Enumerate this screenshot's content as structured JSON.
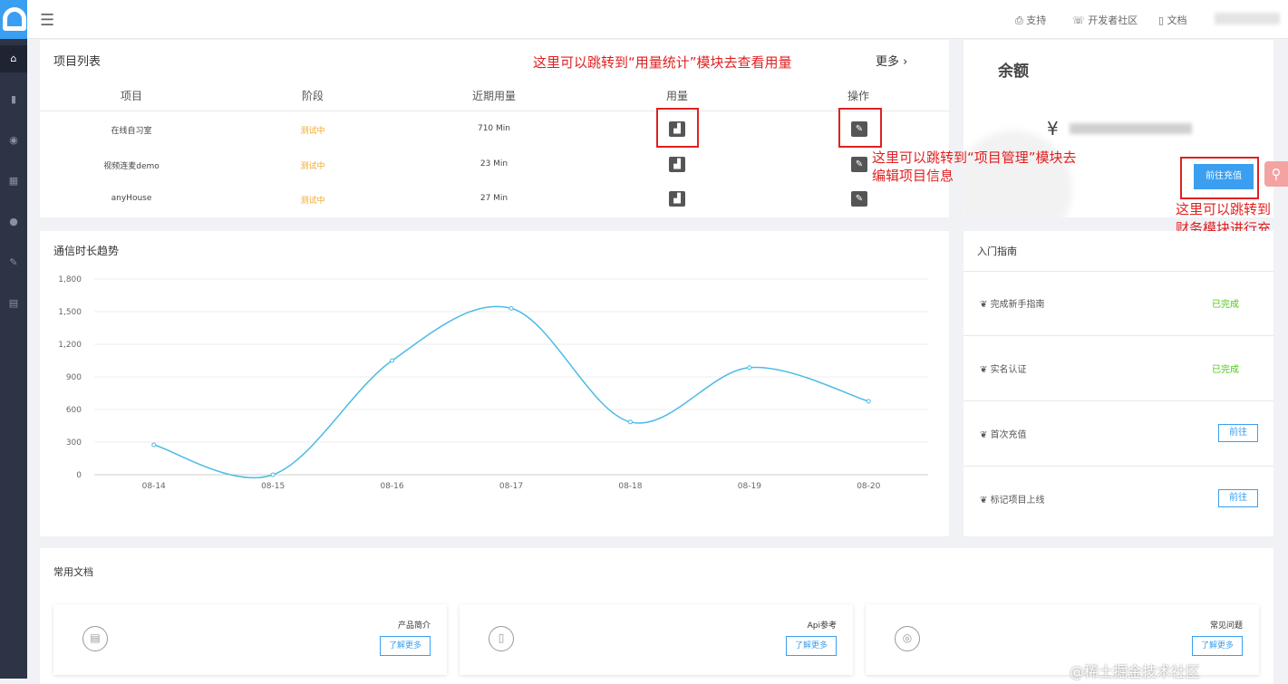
{
  "header": {
    "links": [
      "支持",
      "开发者社区",
      "文档"
    ]
  },
  "projects": {
    "title": "项目列表",
    "more": "更多",
    "columns": [
      "项目",
      "阶段",
      "近期用量",
      "用量",
      "操作"
    ],
    "rows": [
      {
        "name": "在线自习室",
        "stage": "测试中",
        "usage": "710 Min"
      },
      {
        "name": "视频连麦demo",
        "stage": "测试中",
        "usage": "23 Min"
      },
      {
        "name": "anyHouse",
        "stage": "测试中",
        "usage": "27 Min"
      }
    ]
  },
  "balance": {
    "title": "余额",
    "currency": "¥",
    "recharge": "前往充值"
  },
  "annotations": {
    "usage": "这里可以跳转到“用量统计”模块去查看用量",
    "edit": "这里可以跳转到“项目管理”模块去编辑项目信息",
    "recharge": "这里可以跳转到财务模块进行充值"
  },
  "chart_title": "通信时长趋势",
  "chart_data": {
    "type": "line",
    "categories": [
      "08-14",
      "08-15",
      "08-16",
      "08-17",
      "08-18",
      "08-19",
      "08-20"
    ],
    "values": [
      275,
      0,
      1050,
      1530,
      485,
      985,
      675
    ],
    "ylim": [
      0,
      1800
    ],
    "yticks": [
      "0",
      "300",
      "600",
      "900",
      "1,200",
      "1,500",
      "1,800"
    ],
    "grid": true,
    "color": "#4cbbe6",
    "smooth": true
  },
  "guide": {
    "title": "入门指南",
    "items": [
      {
        "label": "完成新手指南",
        "status": "已完成"
      },
      {
        "label": "实名认证",
        "status": "已完成"
      },
      {
        "label": "首次充值",
        "button": "前往"
      },
      {
        "label": "标记项目上线",
        "button": "前往"
      }
    ]
  },
  "docs": {
    "title": "常用文档",
    "items": [
      {
        "title": "产品简介",
        "button": "了解更多"
      },
      {
        "title": "Api参考",
        "button": "了解更多"
      },
      {
        "title": "常见问题",
        "button": "了解更多"
      }
    ]
  },
  "watermark": "@稀土掘金技术社区"
}
